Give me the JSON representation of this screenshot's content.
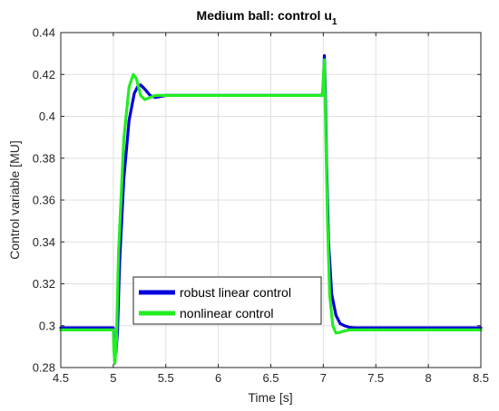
{
  "chart_data": {
    "type": "line",
    "title": "Medium ball: control u",
    "title_subscript": "1",
    "xlabel": "Time [s]",
    "ylabel": "Control variable [MU]",
    "xlim": [
      4.5,
      8.5
    ],
    "ylim": [
      0.28,
      0.44
    ],
    "xticks": [
      "4.5",
      "5",
      "5.5",
      "6",
      "6.5",
      "7",
      "7.5",
      "8",
      "8.5"
    ],
    "yticks": [
      "0.28",
      "0.3",
      "0.32",
      "0.34",
      "0.36",
      "0.38",
      "0.4",
      "0.42",
      "0.44"
    ],
    "grid": true,
    "legend_position": "lower-left",
    "series": [
      {
        "name": "robust linear control",
        "color": "#0000dd",
        "x": [
          4.5,
          5.0,
          5.01,
          5.025,
          5.04,
          5.06,
          5.1,
          5.15,
          5.2,
          5.23,
          5.26,
          5.3,
          5.35,
          5.4,
          5.5,
          6.0,
          6.5,
          6.99,
          7.0,
          7.01,
          7.02,
          7.03,
          7.05,
          7.08,
          7.12,
          7.16,
          7.2,
          7.25,
          7.3,
          7.4,
          7.6,
          8.0,
          8.5
        ],
        "y": [
          0.299,
          0.299,
          0.291,
          0.287,
          0.297,
          0.33,
          0.37,
          0.398,
          0.411,
          0.414,
          0.415,
          0.413,
          0.41,
          0.409,
          0.41,
          0.41,
          0.41,
          0.41,
          0.415,
          0.429,
          0.41,
          0.38,
          0.34,
          0.315,
          0.305,
          0.301,
          0.3,
          0.2992,
          0.299,
          0.299,
          0.299,
          0.299,
          0.299
        ]
      },
      {
        "name": "nonlinear control",
        "color": "#22ee22",
        "x": [
          4.5,
          5.0,
          5.005,
          5.015,
          5.03,
          5.05,
          5.1,
          5.15,
          5.19,
          5.22,
          5.26,
          5.3,
          5.35,
          5.4,
          5.5,
          6.0,
          6.5,
          6.99,
          7.0,
          7.01,
          7.02,
          7.04,
          7.06,
          7.09,
          7.12,
          7.16,
          7.2,
          7.25,
          7.3,
          7.4,
          7.5,
          8.0,
          8.5
        ],
        "y": [
          0.298,
          0.298,
          0.289,
          0.282,
          0.293,
          0.335,
          0.389,
          0.414,
          0.42,
          0.418,
          0.41,
          0.408,
          0.409,
          0.41,
          0.41,
          0.41,
          0.41,
          0.41,
          0.418,
          0.427,
          0.4,
          0.35,
          0.315,
          0.3,
          0.2965,
          0.2968,
          0.2975,
          0.298,
          0.298,
          0.298,
          0.298,
          0.298,
          0.298
        ]
      }
    ]
  }
}
